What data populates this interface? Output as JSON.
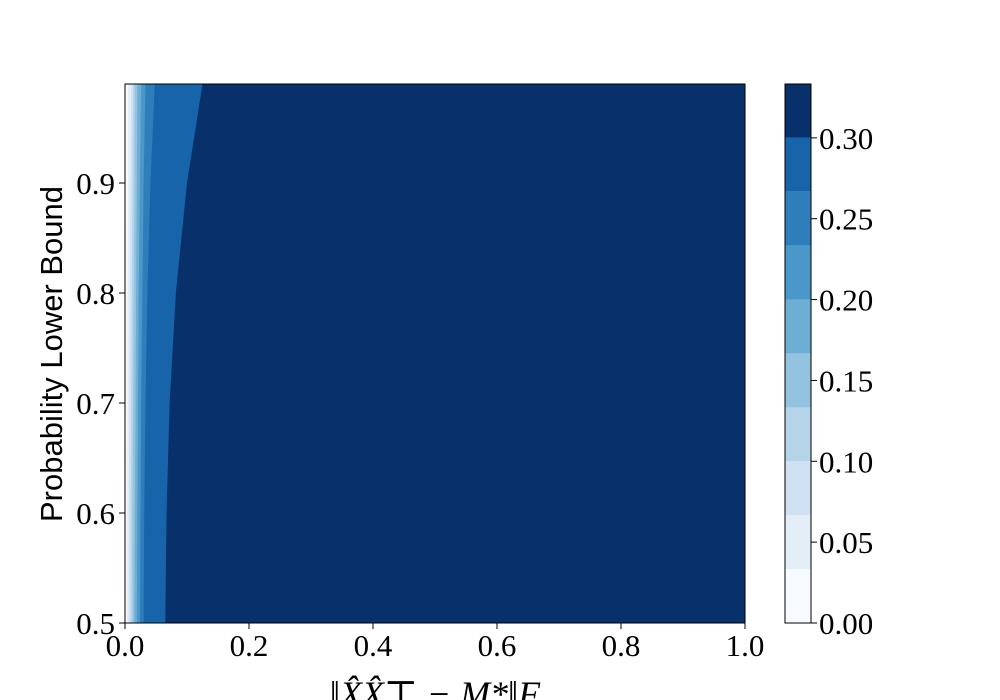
{
  "chart_data": {
    "type": "contour",
    "xlabel": "‖X̂X̂⊤ − M*‖F",
    "ylabel": "Probability Lower Bound",
    "xlim": [
      0,
      1
    ],
    "ylim": [
      0.5,
      0.99
    ],
    "xticks": [
      {
        "value": 0,
        "label": "0.0"
      },
      0.2,
      0.4,
      0.6,
      0.8,
      {
        "value": 1,
        "label": "1.0"
      }
    ],
    "yticks": [
      {
        "value": 0.5,
        "label": "0.5"
      },
      0.6,
      0.7,
      0.8,
      0.9
    ],
    "y_samples": [
      0.5,
      0.6,
      0.7,
      0.8,
      0.9,
      0.99
    ],
    "boundaries": [
      [
        0.003,
        0.003,
        0.004,
        0.004,
        0.005,
        0.005
      ],
      [
        0.006,
        0.006,
        0.007,
        0.008,
        0.009,
        0.01
      ],
      [
        0.009,
        0.009,
        0.01,
        0.011,
        0.012,
        0.013
      ],
      [
        0.012,
        0.012,
        0.013,
        0.014,
        0.015,
        0.016
      ],
      [
        0.015,
        0.016,
        0.017,
        0.018,
        0.019,
        0.02
      ],
      [
        0.019,
        0.02,
        0.021,
        0.022,
        0.024,
        0.026
      ],
      [
        0.024,
        0.025,
        0.026,
        0.028,
        0.03,
        0.033
      ],
      [
        0.03,
        0.031,
        0.033,
        0.036,
        0.041,
        0.048
      ],
      [
        0.065,
        0.067,
        0.072,
        0.082,
        0.1,
        0.125
      ]
    ],
    "levels": [
      0,
      0.0333,
      0.0667,
      0.1,
      0.1333,
      0.1667,
      0.2,
      0.2333,
      0.2667,
      0.3,
      0.3333
    ],
    "colors": [
      "#f7fbff",
      "#e3eef9",
      "#cfe1f2",
      "#b5d4e9",
      "#93c3df",
      "#6daed5",
      "#4b97c9",
      "#2f7ebc",
      "#1864aa",
      "#08306b"
    ],
    "colorbar_lim": [
      0,
      0.3333
    ],
    "colorbar_ticks": [
      {
        "value": 0,
        "label": "0.00"
      },
      0.05,
      {
        "value": 0.1,
        "label": "0.10"
      },
      0.15,
      {
        "value": 0.2,
        "label": "0.20"
      },
      0.25,
      {
        "value": 0.3,
        "label": "0.30"
      }
    ]
  }
}
